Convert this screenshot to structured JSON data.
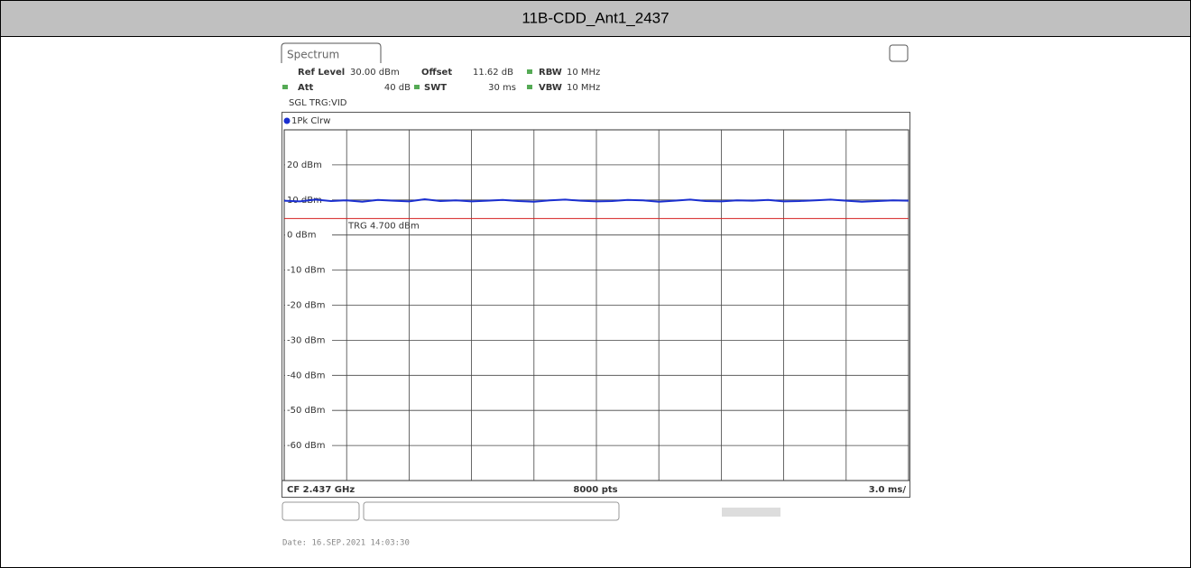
{
  "chart_data": {
    "type": "line",
    "title": "11B-CDD_Ant1_2437",
    "tab": "Spectrum",
    "settings": {
      "ref_level_label": "Ref Level",
      "ref_level": "30.00 dBm",
      "offset_label": "Offset",
      "offset": "11.62 dB",
      "rbw_label": "RBW",
      "rbw": "10 MHz",
      "att_label": "Att",
      "att": "40 dB",
      "swt_label": "SWT",
      "swt": "30 ms",
      "vbw_label": "VBW",
      "vbw": "10 MHz",
      "trigger": "SGL TRG:VID"
    },
    "trace_label": "1Pk Clrw",
    "series": [
      {
        "name": "1Pk Clrw",
        "color": "#1a2fd0",
        "values": [
          9.8,
          9.6,
          10.1,
          9.7,
          9.9,
          9.5,
          10.0,
          9.8,
          9.6,
          10.2,
          9.7,
          9.9,
          9.6,
          9.8,
          10.0,
          9.7,
          9.5,
          9.9,
          10.1,
          9.8,
          9.6,
          9.7,
          10.0,
          9.9,
          9.5,
          9.8,
          10.1,
          9.7,
          9.6,
          9.9,
          9.8,
          10.0,
          9.6,
          9.7,
          9.9,
          10.1,
          9.8,
          9.5,
          9.7,
          9.9,
          9.8
        ]
      }
    ],
    "threshold": {
      "value": 4.7,
      "label": "TRG 4.700 dBm",
      "color": "#d42020"
    },
    "ylim": [
      -70,
      30
    ],
    "yticks": [
      {
        "value": 20,
        "label": "20 dBm"
      },
      {
        "value": 10,
        "label": "10 dBm"
      },
      {
        "value": 0,
        "label": "0 dBm"
      },
      {
        "value": -10,
        "label": "-10 dBm"
      },
      {
        "value": -20,
        "label": "-20 dBm"
      },
      {
        "value": -30,
        "label": "-30 dBm"
      },
      {
        "value": -40,
        "label": "-40 dBm"
      },
      {
        "value": -50,
        "label": "-50 dBm"
      },
      {
        "value": -60,
        "label": "-60 dBm"
      }
    ],
    "x_divisions": 10,
    "grid": true,
    "footer": {
      "center_frequency": "CF 2.437 GHz",
      "points": "8000 pts",
      "sweep": "3.0 ms/"
    },
    "date": "Date: 16.SEP.2021  14:03:30"
  }
}
